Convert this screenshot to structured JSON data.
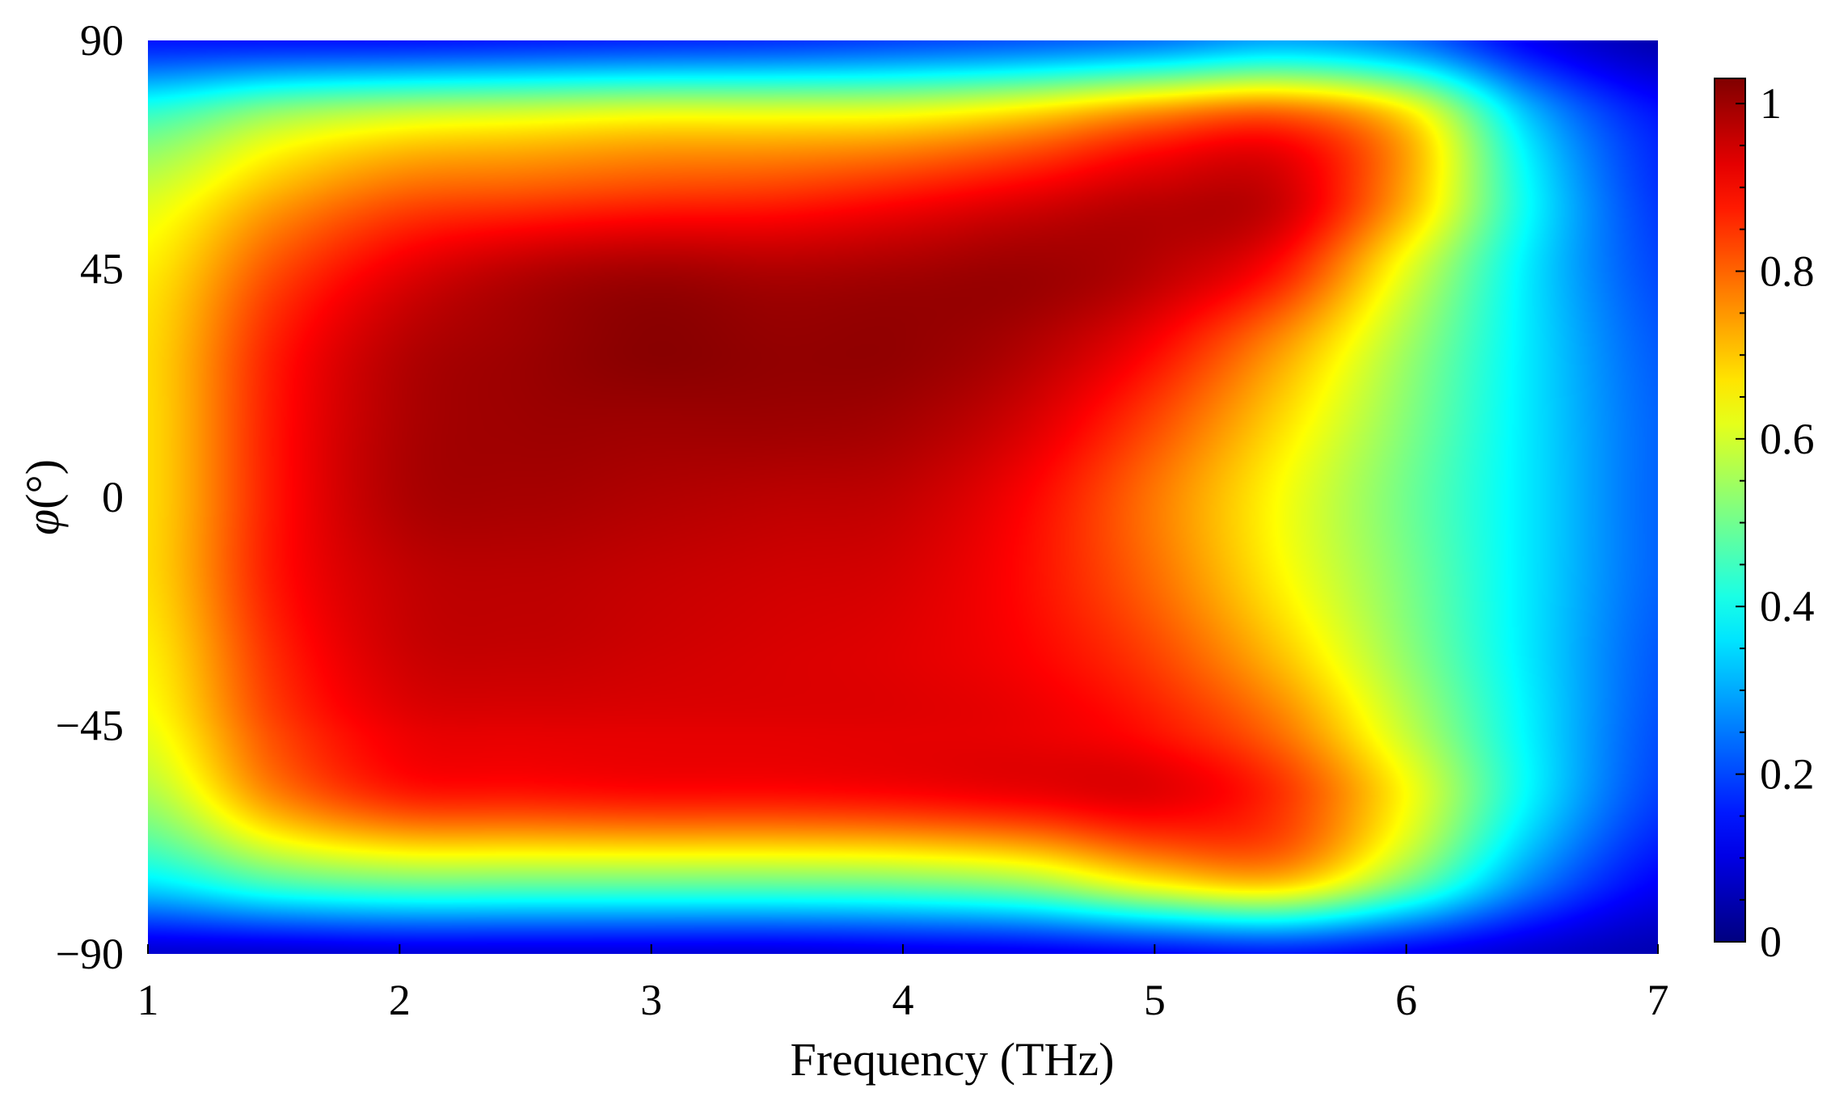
{
  "chart_data": {
    "type": "heatmap",
    "title": "",
    "xlabel": "Frequency (THz)",
    "ylabel": {
      "symbol": "φ",
      "unit": "(°)"
    },
    "xlim": [
      1,
      7
    ],
    "ylim": [
      -90,
      90
    ],
    "x_ticks": [
      1,
      2,
      3,
      4,
      5,
      6,
      7
    ],
    "x_tick_labels": [
      "1",
      "2",
      "3",
      "4",
      "5",
      "6",
      "7"
    ],
    "y_ticks": [
      90,
      45,
      0,
      -45,
      -90
    ],
    "y_tick_labels": [
      "90",
      "45",
      "0",
      "−45",
      "−90"
    ],
    "colorbar": {
      "colormap": "jet",
      "range": [
        0,
        1.03
      ],
      "ticks": [
        0,
        0.2,
        0.4,
        0.6,
        0.8,
        1
      ],
      "tick_labels": [
        "0",
        "0.2",
        "0.4",
        "0.6",
        "0.8",
        "1"
      ],
      "placement": "right"
    },
    "x": [
      1,
      1.5,
      2,
      2.5,
      3,
      3.5,
      4,
      4.5,
      5,
      5.5,
      6,
      6.5,
      7
    ],
    "y": [
      90,
      75,
      60,
      45,
      30,
      15,
      0,
      -15,
      -30,
      -45,
      -60,
      -75,
      -90
    ],
    "z": [
      [
        0.15,
        0.15,
        0.15,
        0.16,
        0.17,
        0.18,
        0.2,
        0.22,
        0.25,
        0.3,
        0.25,
        0.12,
        0.05
      ],
      [
        0.45,
        0.55,
        0.6,
        0.62,
        0.64,
        0.64,
        0.65,
        0.7,
        0.78,
        0.82,
        0.68,
        0.32,
        0.15
      ],
      [
        0.6,
        0.72,
        0.8,
        0.82,
        0.84,
        0.85,
        0.88,
        0.92,
        0.96,
        0.95,
        0.73,
        0.38,
        0.18
      ],
      [
        0.66,
        0.82,
        0.92,
        0.97,
        0.99,
        0.98,
        0.99,
        1.0,
        0.97,
        0.88,
        0.62,
        0.36,
        0.2
      ],
      [
        0.68,
        0.87,
        0.97,
        1.0,
        1.02,
        1.01,
        1.01,
        0.98,
        0.9,
        0.75,
        0.55,
        0.36,
        0.22
      ],
      [
        0.68,
        0.88,
        0.98,
        1.0,
        1.0,
        1.0,
        0.99,
        0.94,
        0.83,
        0.68,
        0.52,
        0.36,
        0.23
      ],
      [
        0.68,
        0.88,
        0.98,
        0.99,
        0.98,
        0.97,
        0.96,
        0.9,
        0.78,
        0.64,
        0.5,
        0.36,
        0.23
      ],
      [
        0.68,
        0.88,
        0.96,
        0.97,
        0.96,
        0.95,
        0.94,
        0.89,
        0.79,
        0.65,
        0.51,
        0.36,
        0.23
      ],
      [
        0.66,
        0.86,
        0.95,
        0.96,
        0.95,
        0.94,
        0.93,
        0.9,
        0.83,
        0.7,
        0.53,
        0.36,
        0.22
      ],
      [
        0.63,
        0.83,
        0.92,
        0.93,
        0.93,
        0.93,
        0.93,
        0.92,
        0.88,
        0.78,
        0.58,
        0.37,
        0.21
      ],
      [
        0.55,
        0.75,
        0.85,
        0.86,
        0.87,
        0.87,
        0.88,
        0.9,
        0.92,
        0.85,
        0.64,
        0.37,
        0.19
      ],
      [
        0.38,
        0.48,
        0.52,
        0.52,
        0.52,
        0.52,
        0.53,
        0.57,
        0.68,
        0.72,
        0.52,
        0.27,
        0.13
      ],
      [
        0.08,
        0.08,
        0.09,
        0.09,
        0.09,
        0.09,
        0.1,
        0.11,
        0.13,
        0.15,
        0.12,
        0.08,
        0.05
      ]
    ]
  }
}
